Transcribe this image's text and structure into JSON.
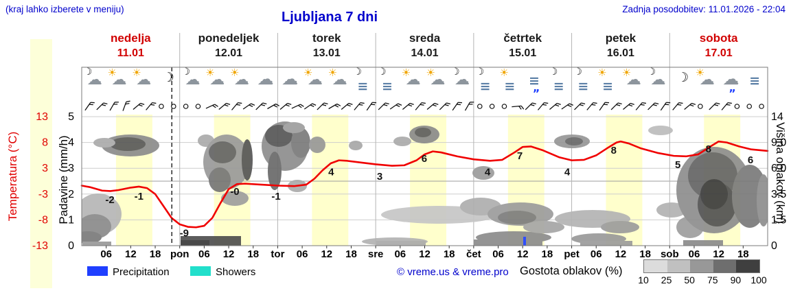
{
  "header": {
    "hint": "(kraj lahko izberete v meniju)",
    "title": "Ljubljana 7 dni",
    "updated": "Zadnja posodobitev: 11.01.2026 - 22:04"
  },
  "days": [
    {
      "name": "nedelja",
      "date": "11.01",
      "color": "#d10000"
    },
    {
      "name": "ponedeljek",
      "date": "12.01",
      "color": "#1a1a1a"
    },
    {
      "name": "torek",
      "date": "13.01",
      "color": "#1a1a1a"
    },
    {
      "name": "sreda",
      "date": "14.01",
      "color": "#1a1a1a"
    },
    {
      "name": "četrtek",
      "date": "15.01",
      "color": "#1a1a1a"
    },
    {
      "name": "petek",
      "date": "16.01",
      "color": "#1a1a1a"
    },
    {
      "name": "sobota",
      "date": "17.01",
      "color": "#d10000"
    }
  ],
  "axes": {
    "temp_label": "Temperatura (°C)",
    "temp_ticks": [
      "13",
      "8",
      "3",
      "-3",
      "-8",
      "-13"
    ],
    "precip_label": "Padavine (mm/h)",
    "precip_ticks": [
      "5",
      "4",
      "3",
      "2",
      "1",
      "0"
    ],
    "height_label": "Višina oblakov (km)",
    "height_ticks": [
      "14",
      "9.0",
      "6.0",
      "3.5",
      "1.5",
      "0"
    ],
    "hour_labels": [
      "06",
      "12",
      "18"
    ],
    "day_abbrevs": [
      "pon",
      "tor",
      "sre",
      "čet",
      "pet",
      "sob"
    ]
  },
  "legend": {
    "precipitation": "Precipitation",
    "showers": "Showers",
    "credit": "© vreme.us & vreme.pro",
    "cloud_density": "Gostota oblakov (%)",
    "density_ticks": [
      "10",
      "25",
      "50",
      "75",
      "90",
      "100"
    ],
    "density_colors": [
      "#dcdcdc",
      "#c0c0c0",
      "#989898",
      "#6e6e6e",
      "#3f3f3f"
    ],
    "precip_color": "#1f3fff",
    "showers_color": "#22dfcb"
  },
  "icons": [
    "cm",
    "cs",
    "cs",
    "m",
    "cm",
    "cs",
    "cs",
    "c",
    "c",
    "cs",
    "cs",
    "fm",
    "fm",
    "cs",
    "cs",
    "cm",
    "fm",
    "fs",
    "fr",
    "fm",
    "fm",
    "fs",
    "cs",
    "cm",
    "m",
    "cs",
    "cr",
    "f"
  ],
  "wind": [
    35,
    45,
    30,
    20,
    50,
    40,
    null,
    null,
    null,
    null,
    65,
    50,
    40,
    55,
    45,
    60,
    50,
    65,
    55,
    45,
    60,
    50,
    40,
    35,
    45,
    55,
    50,
    40,
    50,
    45,
    35,
    30,
    null,
    null,
    null,
    85,
    45,
    40,
    50,
    55,
    45,
    40,
    35,
    45,
    50,
    40,
    45,
    35,
    40,
    50,
    null,
    45,
    40,
    null,
    null,
    null
  ],
  "chart_data": {
    "type": "line",
    "title": "Ljubljana 7 dni — meteogram",
    "x_unit": "hours from 11.01 00:00",
    "now_line_hour": 22.07,
    "day_bands": {
      "fill": "#ffffcc",
      "start_hour": 8.4,
      "end_hour": 17.3
    },
    "temp_axis": {
      "color": "#e00000",
      "ticks": [
        13,
        8,
        3,
        -3,
        -8,
        -13
      ]
    },
    "precip_axis": {
      "ticks": [
        5,
        4,
        3,
        2,
        1,
        0
      ],
      "unit": "mm/h"
    },
    "height_axis": {
      "ticks": [
        "14",
        "9.0",
        "6.0",
        "3.5",
        "1.5",
        "0"
      ],
      "unit": "km"
    },
    "temperature_series": {
      "name": "Temperatura",
      "unit": "°C",
      "color": "#f00000",
      "points": [
        [
          0,
          -0.9
        ],
        [
          2,
          -1.2
        ],
        [
          5,
          -1.9
        ],
        [
          7,
          -2.0
        ],
        [
          9,
          -1.8
        ],
        [
          12,
          -1.3
        ],
        [
          14,
          -1.1
        ],
        [
          16,
          -1.4
        ],
        [
          18,
          -2.6
        ],
        [
          20,
          -5.0
        ],
        [
          22,
          -7.4
        ],
        [
          24,
          -8.7
        ],
        [
          26,
          -9.2
        ],
        [
          28,
          -9.3
        ],
        [
          30,
          -9.0
        ],
        [
          32,
          -7.4
        ],
        [
          34,
          -4.4
        ],
        [
          36,
          -1.6
        ],
        [
          38,
          -0.6
        ],
        [
          40,
          -0.5
        ],
        [
          44,
          -0.7
        ],
        [
          48,
          -0.9
        ],
        [
          52,
          -1.0
        ],
        [
          55,
          -0.7
        ],
        [
          57,
          0.5
        ],
        [
          59,
          2.2
        ],
        [
          61,
          3.6
        ],
        [
          63,
          4.2
        ],
        [
          65,
          4.1
        ],
        [
          68,
          3.8
        ],
        [
          72,
          3.4
        ],
        [
          76,
          3.1
        ],
        [
          79,
          3.2
        ],
        [
          82,
          4.2
        ],
        [
          84,
          5.4
        ],
        [
          86,
          6.0
        ],
        [
          88,
          5.8
        ],
        [
          92,
          5.0
        ],
        [
          96,
          4.4
        ],
        [
          100,
          4.1
        ],
        [
          103,
          4.3
        ],
        [
          106,
          5.8
        ],
        [
          108,
          6.9
        ],
        [
          110,
          7.0
        ],
        [
          113,
          6.2
        ],
        [
          117,
          4.8
        ],
        [
          120,
          4.2
        ],
        [
          123,
          4.3
        ],
        [
          126,
          5.2
        ],
        [
          129,
          6.8
        ],
        [
          131,
          7.8
        ],
        [
          132,
          8.0
        ],
        [
          134,
          7.6
        ],
        [
          137,
          6.6
        ],
        [
          141,
          5.7
        ],
        [
          145,
          5.1
        ],
        [
          148,
          5.0
        ],
        [
          151,
          5.4
        ],
        [
          154,
          7.0
        ],
        [
          156,
          8.0
        ],
        [
          158,
          7.8
        ],
        [
          161,
          7.0
        ],
        [
          164,
          6.4
        ],
        [
          168,
          6.1
        ]
      ]
    },
    "temp_point_labels": [
      {
        "text": "-2",
        "h": 6.9,
        "t": -4.4
      },
      {
        "text": "-1",
        "h": 14.0,
        "t": -3.7
      },
      {
        "text": "-9",
        "h": 25.1,
        "t": -11.1
      },
      {
        "text": "-0",
        "h": 37.5,
        "t": -2.8
      },
      {
        "text": "-1",
        "h": 47.6,
        "t": -3.7
      },
      {
        "text": "4",
        "h": 61.1,
        "t": 1.2
      },
      {
        "text": "3",
        "h": 73.0,
        "t": 0.3
      },
      {
        "text": "6",
        "h": 83.9,
        "t": 3.9
      },
      {
        "text": "4",
        "h": 99.4,
        "t": 1.2
      },
      {
        "text": "7",
        "h": 107.3,
        "t": 4.4
      },
      {
        "text": "4",
        "h": 118.9,
        "t": 1.2
      },
      {
        "text": "8",
        "h": 130.3,
        "t": 5.5
      },
      {
        "text": "5",
        "h": 146.0,
        "t": 2.6
      },
      {
        "text": "8",
        "h": 153.5,
        "t": 5.8
      },
      {
        "text": "6",
        "h": 163.8,
        "t": 3.6
      }
    ],
    "clouds": [
      [
        190,
        212,
        42,
        16,
        "#8c8c8c"
      ],
      [
        186,
        210,
        26,
        10,
        "#5a5a5a"
      ],
      [
        152,
        208,
        16,
        7,
        "#ababab"
      ],
      [
        143,
        312,
        34,
        30,
        "#b6b6b6"
      ],
      [
        138,
        330,
        24,
        18,
        "#8a8a8a"
      ],
      [
        128,
        346,
        20,
        9,
        "#7a7a7a"
      ],
      [
        300,
        205,
        12,
        9,
        "#ababab"
      ],
      [
        330,
        236,
        34,
        40,
        "#9a9a9a"
      ],
      [
        324,
        222,
        20,
        16,
        "#636363"
      ],
      [
        320,
        262,
        16,
        18,
        "#767676"
      ],
      [
        360,
        233,
        8,
        30,
        "#555555"
      ],
      [
        342,
        289,
        20,
        11,
        "#9e9e9e"
      ],
      [
        415,
        213,
        34,
        36,
        "#8e8e8e"
      ],
      [
        406,
        198,
        20,
        16,
        "#565656"
      ],
      [
        400,
        249,
        10,
        28,
        "#6a6a6a"
      ],
      [
        438,
        208,
        14,
        22,
        "#7a7a7a"
      ],
      [
        428,
        186,
        16,
        8,
        "#9e9e9e"
      ],
      [
        462,
        211,
        12,
        12,
        "#979797"
      ],
      [
        518,
        212,
        10,
        7,
        "#a8a8a8"
      ],
      [
        433,
        271,
        14,
        9,
        "#ababab"
      ],
      [
        618,
        196,
        22,
        13,
        "#8a8a8a"
      ],
      [
        616,
        193,
        12,
        7,
        "#5e5e5e"
      ],
      [
        586,
        206,
        13,
        7,
        "#ababab"
      ],
      [
        640,
        313,
        85,
        13,
        "#c6c6c6"
      ],
      [
        575,
        352,
        48,
        6,
        "#b2b2b2"
      ],
      [
        704,
        252,
        16,
        10,
        "#9c9c9c"
      ],
      [
        700,
        301,
        30,
        13,
        "#aeaeae"
      ],
      [
        758,
        312,
        48,
        17,
        "#9c9c9c"
      ],
      [
        753,
        317,
        28,
        10,
        "#7c7c7c"
      ],
      [
        748,
        346,
        55,
        9,
        "#8c8c8c"
      ],
      [
        792,
        331,
        30,
        9,
        "#a6a6a6"
      ],
      [
        833,
        206,
        26,
        10,
        "#969696"
      ],
      [
        836,
        206,
        13,
        6,
        "#686868"
      ],
      [
        863,
        319,
        55,
        13,
        "#b4b4b4"
      ],
      [
        903,
        331,
        28,
        9,
        "#9c9c9c"
      ],
      [
        872,
        348,
        40,
        8,
        "#9a9a9a"
      ],
      [
        962,
        190,
        18,
        7,
        "#bcbcbc"
      ],
      [
        978,
        306,
        22,
        11,
        "#b2b2b2"
      ],
      [
        1005,
        331,
        20,
        16,
        "#9e9e9e"
      ],
      [
        1040,
        277,
        55,
        63,
        "#8e8e8e"
      ],
      [
        1038,
        256,
        36,
        34,
        "#646464"
      ],
      [
        1044,
        298,
        28,
        32,
        "#525252"
      ],
      [
        1040,
        283,
        20,
        22,
        "#3c3c3c"
      ],
      [
        1092,
        286,
        26,
        46,
        "#7a7a7a"
      ],
      [
        1112,
        292,
        10,
        38,
        "#8e8e8e"
      ]
    ],
    "bars": [
      [
        263,
        344,
        88,
        14,
        "#4f4f4f"
      ],
      [
        263,
        350,
        42,
        8,
        "#3a3a3a"
      ],
      [
        120,
        352,
        42,
        6,
        "#9a9a9a"
      ],
      [
        548,
        351,
        72,
        7,
        "#aaaaaa"
      ],
      [
        690,
        349,
        100,
        9,
        "#8c8c8c"
      ],
      [
        845,
        351,
        76,
        7,
        "#9c9c9c"
      ],
      [
        995,
        350,
        58,
        8,
        "#8c8c8c"
      ],
      [
        762,
        345,
        4,
        13,
        "#1f3fff"
      ]
    ]
  }
}
